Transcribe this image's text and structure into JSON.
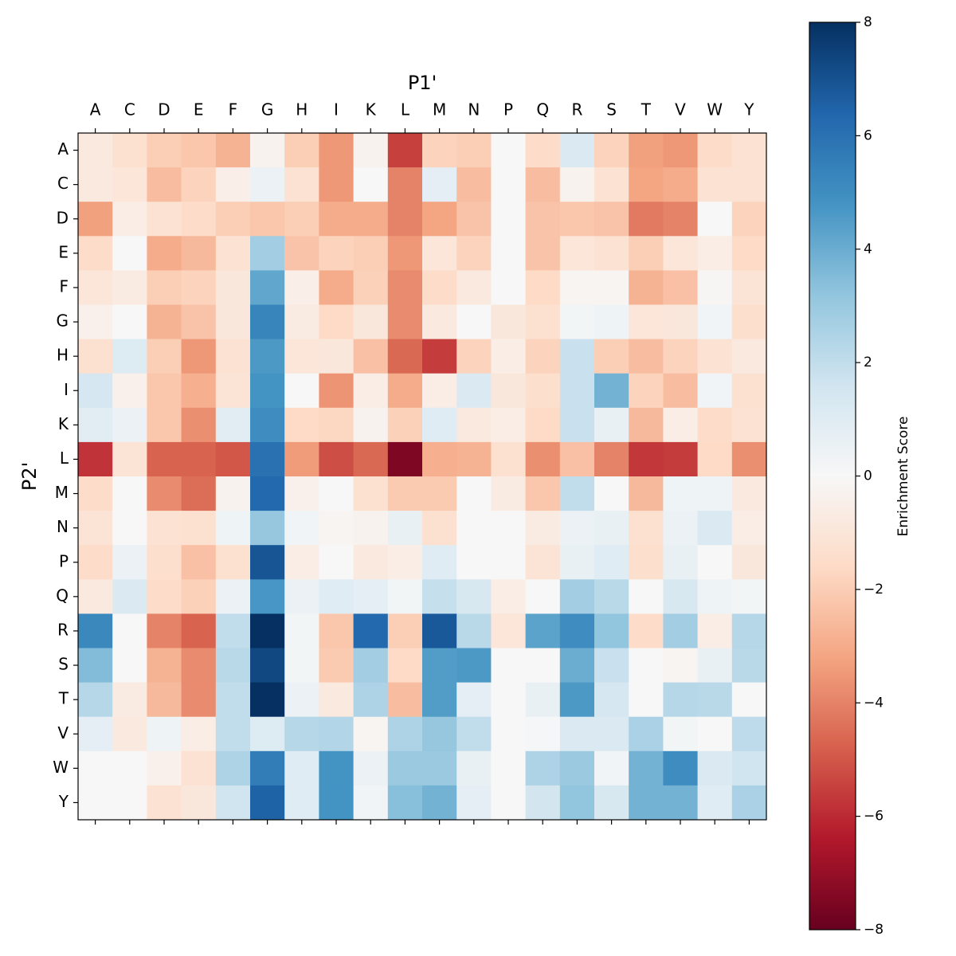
{
  "chart_data": {
    "type": "heatmap",
    "x_label": "P1'",
    "y_label": "P2'",
    "colorbar_label": "Enrichment Score",
    "x_categories": [
      "A",
      "C",
      "D",
      "E",
      "F",
      "G",
      "H",
      "I",
      "K",
      "L",
      "M",
      "N",
      "P",
      "Q",
      "R",
      "S",
      "T",
      "V",
      "W",
      "Y"
    ],
    "y_categories": [
      "A",
      "C",
      "D",
      "E",
      "F",
      "G",
      "H",
      "I",
      "K",
      "L",
      "M",
      "N",
      "P",
      "Q",
      "R",
      "S",
      "T",
      "V",
      "W",
      "Y"
    ],
    "values": [
      [
        -0.8,
        -1.3,
        -2,
        -2.2,
        -2.8,
        -0.3,
        -2,
        -3.5,
        -0.3,
        -5.5,
        -1.8,
        -2,
        0,
        -1.5,
        1.2,
        -1.8,
        -3.3,
        -3.5,
        -1.5,
        -1.2
      ],
      [
        -0.8,
        -1,
        -2.5,
        -1.8,
        -0.5,
        0.5,
        -1.2,
        -3.5,
        0,
        -4,
        0.8,
        -2.5,
        0,
        -2.5,
        -0.3,
        -1.2,
        -3.2,
        -3,
        -1.2,
        -1.2
      ],
      [
        -3.3,
        -0.6,
        -1.2,
        -1.5,
        -2,
        -2.2,
        -2,
        -3,
        -3,
        -4,
        -3.2,
        -2.3,
        0,
        -2.3,
        -2.2,
        -2.3,
        -4.2,
        -4,
        0,
        -1.8
      ],
      [
        -1.5,
        0,
        -3,
        -2.6,
        -1.2,
        2.8,
        -2.3,
        -1.8,
        -2,
        -3.5,
        -1,
        -1.8,
        0,
        -2.3,
        -1,
        -1.2,
        -2,
        -1,
        -0.6,
        -1.6
      ],
      [
        -1,
        -0.7,
        -2,
        -1.8,
        -0.9,
        4.2,
        -0.5,
        -3,
        -1.9,
        -3.8,
        -1.5,
        -0.8,
        0,
        -1.6,
        -0.2,
        -0.2,
        -2.8,
        -2.4,
        -0.1,
        -1.1
      ],
      [
        -0.4,
        0,
        -2.8,
        -2.3,
        -0.9,
        5.3,
        -0.7,
        -1.6,
        -0.9,
        -3.8,
        -0.8,
        0,
        -0.9,
        -1.3,
        0.2,
        0.4,
        -1,
        -0.9,
        0.3,
        -1.4
      ],
      [
        -1.3,
        1.1,
        -2,
        -3.5,
        -1.2,
        4.6,
        -1,
        -0.9,
        -2.4,
        -4.6,
        -5.6,
        -1.8,
        -0.6,
        -1.8,
        1.8,
        -2,
        -2.5,
        -1.8,
        -1.2,
        -0.8
      ],
      [
        1.4,
        -0.4,
        -2.2,
        -2.9,
        -1.1,
        4.8,
        0,
        -3.6,
        -0.6,
        -3,
        -0.6,
        1.2,
        -0.9,
        -1.4,
        1.8,
        3.8,
        -1.8,
        -2.5,
        0.3,
        -1.3
      ],
      [
        0.9,
        0.5,
        -2.2,
        -3.7,
        0.9,
        5,
        -1.6,
        -1.7,
        -0.3,
        -1.9,
        1,
        -0.8,
        -0.6,
        -1.6,
        1.8,
        0.6,
        -2.6,
        -0.6,
        -1.5,
        -1.2
      ],
      [
        -5.8,
        -1.1,
        -4.7,
        -4.7,
        -5,
        6,
        -3.4,
        -5.2,
        -4.6,
        -7.5,
        -2.9,
        -2.8,
        -1.3,
        -3.7,
        -2.4,
        -4,
        -5.7,
        -5.6,
        -1.6,
        -3.7
      ],
      [
        -1.5,
        0,
        -3.8,
        -4.5,
        -0.3,
        6.3,
        -0.4,
        0,
        -1.3,
        -2.1,
        -2.1,
        0,
        -0.7,
        -2.2,
        2,
        0,
        -2.6,
        0.4,
        0.4,
        -0.8
      ],
      [
        -1.1,
        0,
        -1.2,
        -1.3,
        0.4,
        3.1,
        0.3,
        -0.2,
        -0.3,
        0.6,
        -1.3,
        0,
        0,
        -0.7,
        0.5,
        0.6,
        -1.3,
        0.5,
        1.2,
        -0.6
      ],
      [
        -1.5,
        0.5,
        -1.4,
        -2.4,
        -1.3,
        6.9,
        -0.6,
        0,
        -0.8,
        -0.6,
        1,
        0,
        0,
        -1.1,
        0.6,
        1,
        -1.4,
        0.6,
        0,
        -0.9
      ],
      [
        -0.8,
        1.2,
        -1.5,
        -1.9,
        0.5,
        4.7,
        0.5,
        1,
        0.8,
        0.2,
        1.9,
        1.3,
        -0.6,
        0,
        2.8,
        2.2,
        0,
        1.3,
        0.4,
        0.2
      ],
      [
        5.2,
        0,
        -4,
        -4.7,
        2,
        8,
        0.2,
        -2.2,
        6.3,
        -2,
        6.8,
        2.2,
        -1,
        4.3,
        5,
        3.2,
        -1.5,
        2.8,
        -0.6,
        2.3
      ],
      [
        3.5,
        0,
        -2.8,
        -3.8,
        2.2,
        7.3,
        0.2,
        -2.1,
        2.8,
        -1.6,
        4.5,
        4.6,
        0,
        0,
        4,
        1.8,
        0,
        -0.2,
        0.6,
        2.2
      ],
      [
        2.3,
        -0.7,
        -2.6,
        -3.8,
        2,
        8,
        0.5,
        -0.8,
        2.5,
        -2.5,
        4.5,
        0.8,
        0,
        0.6,
        4.6,
        1.4,
        0,
        2.3,
        2.2,
        0
      ],
      [
        0.8,
        -0.8,
        0.4,
        -0.6,
        2,
        1.1,
        2.3,
        2.4,
        -0.2,
        2.5,
        3.1,
        2,
        0,
        0.1,
        1.2,
        1.2,
        2.6,
        0.2,
        0,
        2.1
      ],
      [
        0,
        0,
        -0.4,
        -1.2,
        2.5,
        5.6,
        1,
        4.8,
        0.5,
        3,
        3,
        0.6,
        0,
        2.5,
        3,
        0.3,
        3.8,
        5,
        1.2,
        1.6
      ],
      [
        0,
        0,
        -1.2,
        -0.9,
        1.6,
        6.5,
        1,
        4.8,
        0.3,
        3.4,
        3.8,
        0.8,
        0,
        1.5,
        3.2,
        1.3,
        3.8,
        3.8,
        1,
        2.6
      ]
    ],
    "colorscale": [
      "#67001f",
      "#b2182b",
      "#d6604d",
      "#f4a582",
      "#fddbc7",
      "#f7f7f7",
      "#d1e5f0",
      "#92c5de",
      "#4393c3",
      "#2166ac",
      "#053061"
    ],
    "zlim": [
      -8,
      8
    ],
    "zticks": [
      {
        "value": -8,
        "label": "−8"
      },
      {
        "value": -6,
        "label": "−6"
      },
      {
        "value": -4,
        "label": "−4"
      },
      {
        "value": -2,
        "label": "−2"
      },
      0,
      2,
      4,
      6,
      8
    ]
  }
}
